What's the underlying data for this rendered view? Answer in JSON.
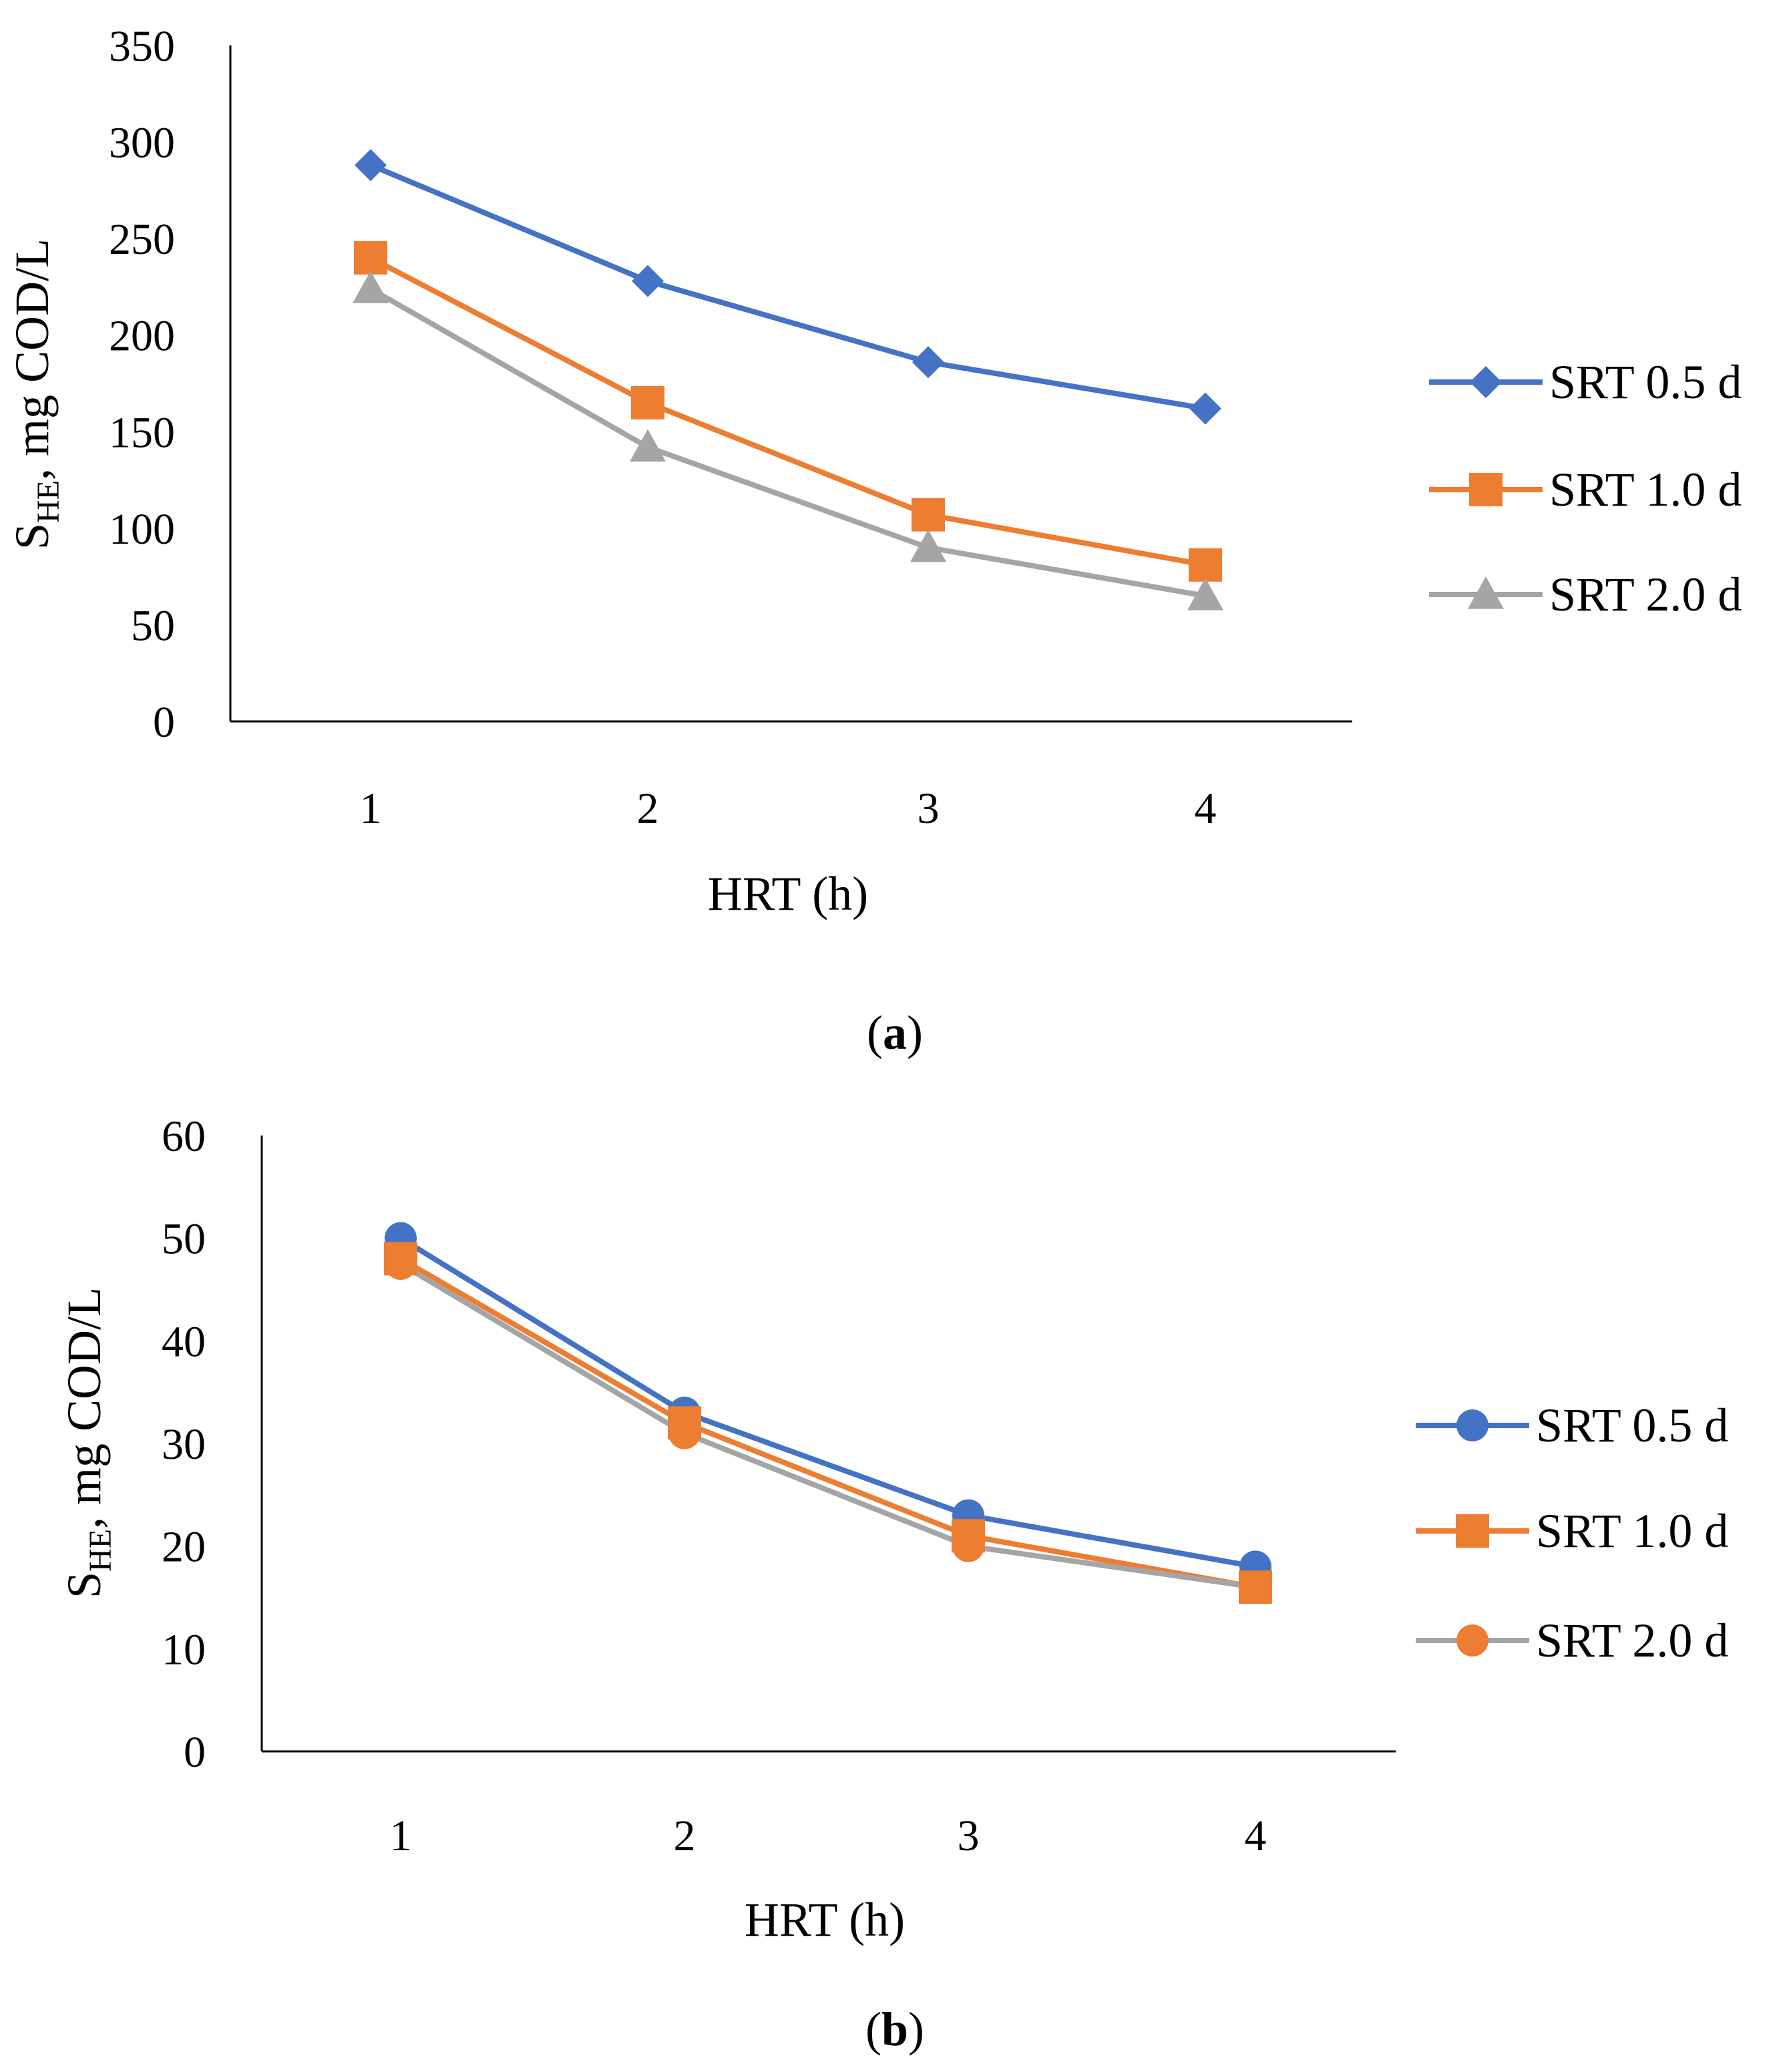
{
  "chart_data": [
    {
      "type": "line",
      "panel_label": "a",
      "title": "",
      "xlabel": "HRT (h)",
      "ylabel_main": "S",
      "ylabel_sub": "HE",
      "ylabel_rest": ", mg COD/L",
      "x": [
        1,
        2,
        3,
        4
      ],
      "x_ticks": [
        "1",
        "2",
        "3",
        "4"
      ],
      "ylim": [
        0,
        350
      ],
      "y_ticks": [
        "0",
        "50",
        "100",
        "150",
        "200",
        "250",
        "300",
        "350"
      ],
      "grid": false,
      "legend_position": "right",
      "series": [
        {
          "name": "SRT 0.5 d",
          "values": [
            288,
            228,
            186,
            162
          ],
          "color": "#4472C4",
          "line_color": "#4472C4",
          "marker": "diamond",
          "marker_color": "#4472C4"
        },
        {
          "name": "SRT 1.0 d",
          "values": [
            240,
            165,
            107,
            81
          ],
          "color": "#ED7D31",
          "line_color": "#ED7D31",
          "marker": "square",
          "marker_color": "#ED7D31"
        },
        {
          "name": "SRT 2.0 d",
          "values": [
            224,
            142,
            90,
            65
          ],
          "color": "#A5A5A5",
          "line_color": "#A5A5A5",
          "marker": "triangle",
          "marker_color": "#A5A5A5"
        }
      ]
    },
    {
      "type": "line",
      "panel_label": "b",
      "title": "",
      "xlabel": "HRT (h)",
      "ylabel_main": "S",
      "ylabel_sub": "HE",
      "ylabel_rest": ", mg COD/L",
      "x": [
        1,
        2,
        3,
        4
      ],
      "x_ticks": [
        "1",
        "2",
        "3",
        "4"
      ],
      "ylim": [
        0,
        60
      ],
      "y_ticks": [
        "0",
        "10",
        "20",
        "30",
        "40",
        "50",
        "60"
      ],
      "grid": false,
      "legend_position": "right",
      "series": [
        {
          "name": "SRT 0.5 d",
          "values": [
            50,
            33,
            23,
            18
          ],
          "color": "#4472C4",
          "line_color": "#4472C4",
          "marker": "circle",
          "marker_color": "#4472C4"
        },
        {
          "name": "SRT 1.0 d",
          "values": [
            48,
            32,
            21,
            16
          ],
          "color": "#ED7D31",
          "line_color": "#ED7D31",
          "marker": "square",
          "marker_color": "#ED7D31"
        },
        {
          "name": "SRT 2.0 d",
          "values": [
            47.5,
            31,
            20,
            16
          ],
          "color": "#A5A5A5",
          "line_color": "#A5A5A5",
          "marker": "circle",
          "marker_color": "#ED7D31"
        }
      ]
    }
  ]
}
